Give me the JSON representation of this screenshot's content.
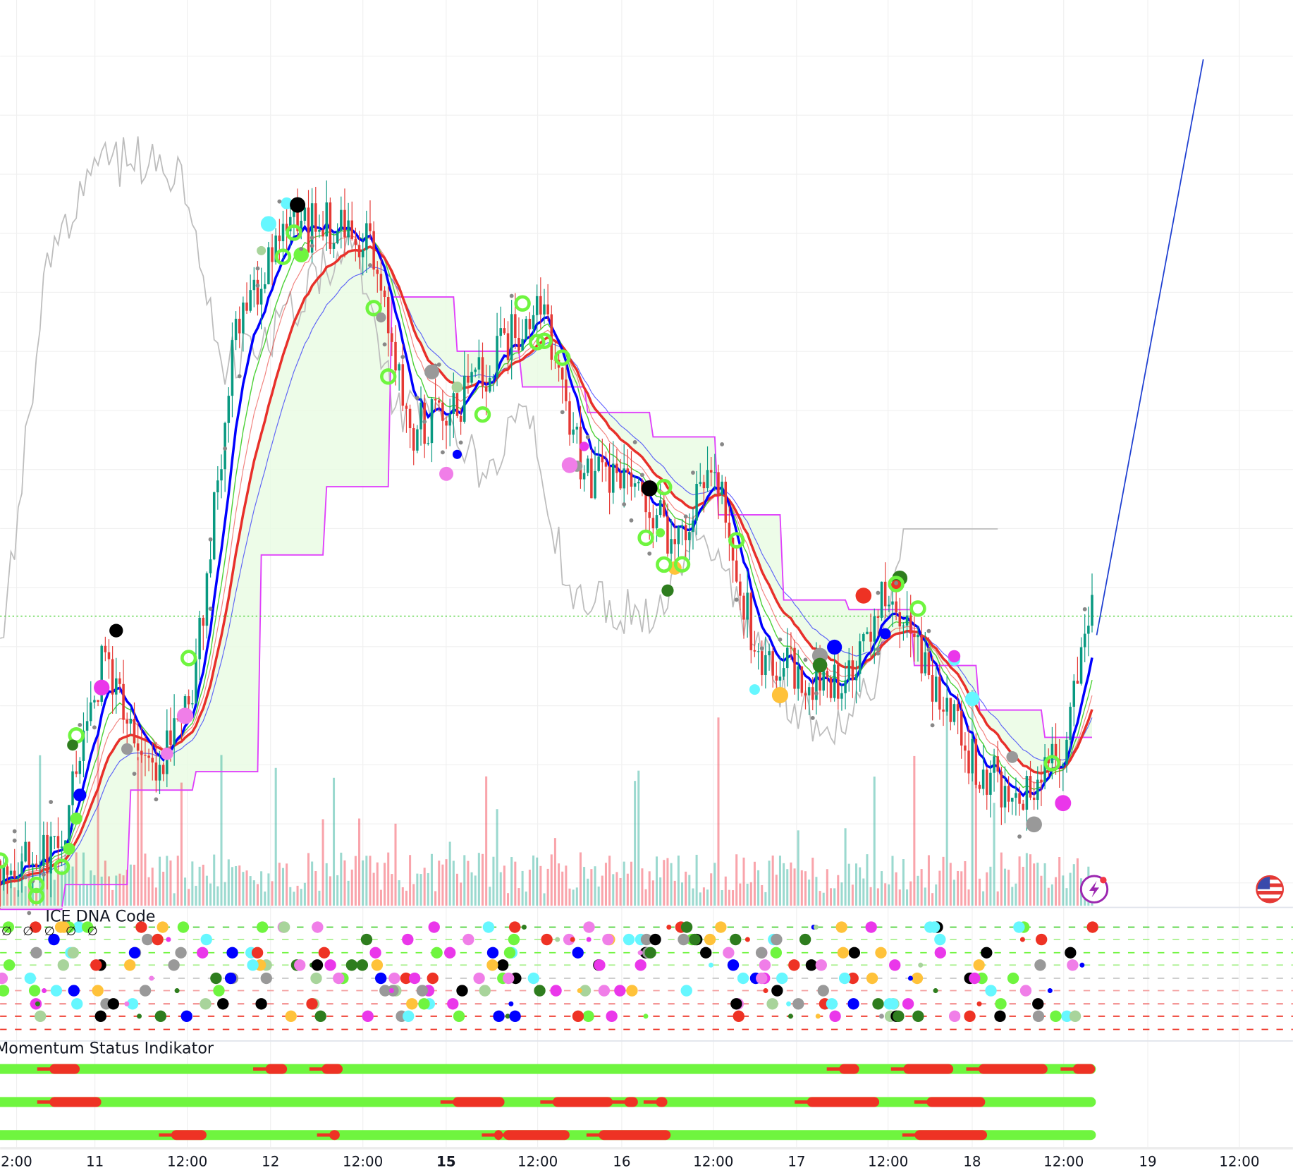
{
  "colors": {
    "up": "#22ab94",
    "down": "#f23645",
    "candle_up": "#089981",
    "candle_down": "#e53935",
    "ma_fast": "#0000ff",
    "ma_slow": "#e8302a",
    "ma_green": "#4cd137",
    "lagging": "#bdbdbd",
    "cloud_line": "#e040fb",
    "cloud_fill_bull": "#e8fbe2",
    "cloud_fill_bear": "#fbe3fb",
    "level_line": "#4cd137",
    "grid": "#f0f0f0",
    "momentum_bull": "#6ff53f",
    "momentum_bear": "#ee3224",
    "dot_palette": [
      "#6ff53f",
      "#2e7d1e",
      "#0000ff",
      "#999999",
      "#f07ee8",
      "#ee3224",
      "#ffc23a",
      "#66f7ff",
      "#ea37ea",
      "#000000",
      "#a8d49b"
    ]
  },
  "chart_data": [
    {
      "type": "candlestick",
      "title": "",
      "x_tick_labels": [
        "2:00",
        "11",
        "12:00",
        "12",
        "12:00",
        "15",
        "12:00",
        "16",
        "12:00",
        "17",
        "12:00",
        "18",
        "12:00",
        "19",
        "12:00"
      ],
      "x_tick_bold": [
        "15"
      ],
      "times": [
        "10 12:00",
        "10 18:00",
        "11 00:00",
        "11 06:00",
        "11 12:00",
        "11 18:00",
        "12 00:00",
        "12 06:00",
        "12 12:00",
        "12 18:00",
        "15 00:00",
        "15 06:00",
        "15 12:00",
        "15 18:00",
        "16 00:00",
        "16 06:00",
        "16 12:00",
        "16 18:00",
        "17 00:00",
        "17 06:00",
        "17 12:00",
        "17 18:00",
        "18 00:00",
        "18 06:00",
        "18 12:00",
        "18 15:00"
      ],
      "close": [
        5,
        7,
        30,
        15,
        24,
        70,
        81,
        83,
        81.5,
        58,
        60,
        67,
        73,
        52,
        53,
        44,
        52,
        30,
        28,
        28,
        39,
        27,
        17,
        13,
        20,
        35
      ],
      "overlays": [
        "fast MA (blue)",
        "slow MA (red)",
        "green MA",
        "lagging line (gray)",
        "cloud baseline (magenta)"
      ],
      "horizontal_level": 35.3,
      "projection_line_end": {
        "time": "19 07:00",
        "value": 102.8
      },
      "volume": "per-candle bars, red/teal",
      "grid": true
    },
    {
      "type": "dot-matrix",
      "title": "ICE DNA Code",
      "rows": 9,
      "header_symbols": [
        "∅",
        "∅",
        "∅",
        "∅",
        "∅"
      ]
    },
    {
      "type": "status-bars",
      "title": "Momentum Status Indikator",
      "rows": 3,
      "states": [
        "bull",
        "bear"
      ]
    }
  ],
  "icons": {
    "alert": "lightning-icon",
    "region": "us-flag-icon"
  }
}
